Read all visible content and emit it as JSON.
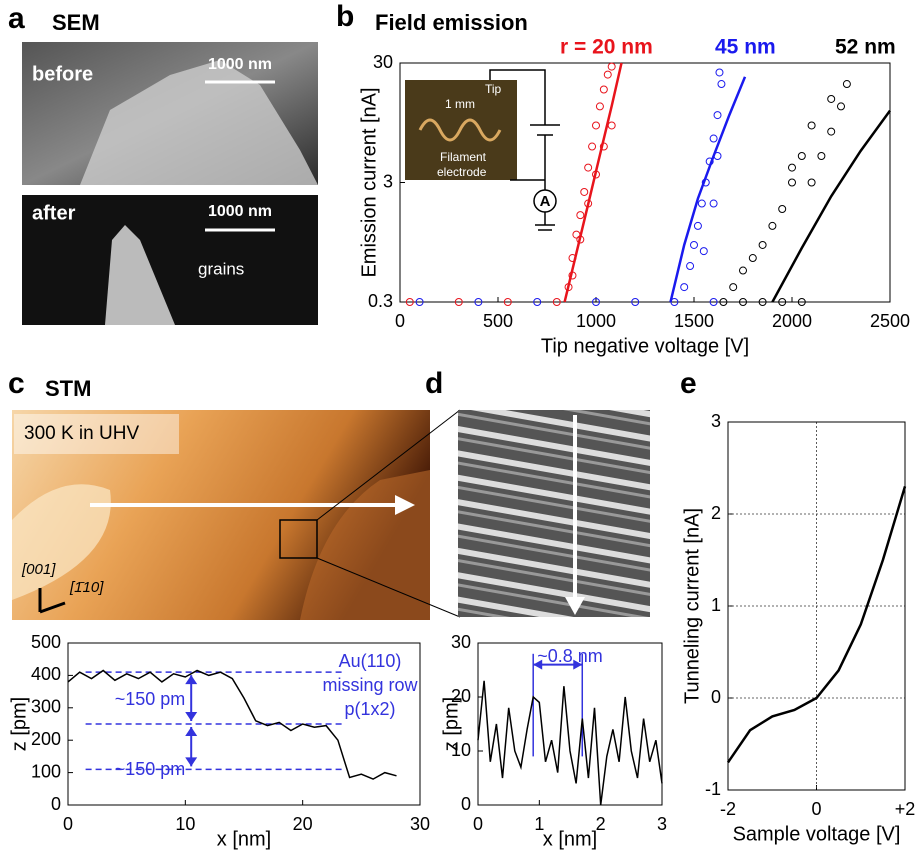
{
  "panels": {
    "a": {
      "label": "a",
      "title": "SEM",
      "before": "before",
      "after": "after",
      "scale_before": "1000 nm",
      "scale_after": "1000 nm",
      "grains": "grains"
    },
    "b": {
      "label": "b",
      "inset_tip": "Tip",
      "inset_scale": "1 mm",
      "inset_filament": "Filament",
      "inset_electrode": "electrode",
      "ammeter": "A"
    },
    "c": {
      "label": "c",
      "title": "STM",
      "condition": "300 K in UHV",
      "dir1": "[001]",
      "dir2": "[1̄10]"
    },
    "d": {
      "label": "d"
    },
    "e": {
      "label": "e"
    }
  },
  "chart_data": [
    {
      "type": "scatter",
      "title": "Field emission",
      "x_label": "Tip negative voltage [V]",
      "y_label": "Emission current [nA]",
      "ylog": true,
      "xlim": [
        0,
        2500
      ],
      "xticks": [
        0,
        500,
        1000,
        1500,
        2000,
        2500
      ],
      "ylim": [
        0.3,
        30
      ],
      "yticks": [
        0.3,
        3,
        30
      ],
      "annotations": [
        "r = 20 nm",
        "45 nm",
        "52 nm"
      ],
      "annotation_colors": [
        "#e8141c",
        "#1a1aee",
        "#000000"
      ],
      "series": [
        {
          "style": "markers",
          "color": "#e8141c",
          "x": [
            860,
            880,
            900,
            920,
            940,
            960,
            980,
            1000,
            1020,
            1040,
            1060,
            1080,
            880,
            920,
            960,
            1000,
            1040,
            1080,
            50,
            300,
            550,
            800
          ],
          "values": [
            0.4,
            0.7,
            1.1,
            1.6,
            2.5,
            4,
            6,
            9,
            13,
            18,
            24,
            28,
            0.5,
            1,
            2,
            3.5,
            6,
            9,
            0.3,
            0.3,
            0.3,
            0.3
          ]
        },
        {
          "style": "line",
          "color": "#e8141c",
          "x": [
            840,
            900,
            960,
            1020,
            1080,
            1130
          ],
          "values": [
            0.3,
            0.77,
            1.98,
            5.1,
            13.1,
            30
          ]
        },
        {
          "style": "markers",
          "color": "#1a1aee",
          "x": [
            1450,
            1480,
            1500,
            1520,
            1540,
            1560,
            1580,
            1600,
            1620,
            1640,
            1550,
            1600,
            1620,
            1630,
            100,
            400,
            700,
            1000,
            1200,
            1400,
            1600
          ],
          "values": [
            0.4,
            0.6,
            0.9,
            1.3,
            2,
            3,
            4.5,
            7,
            11,
            20,
            0.8,
            2,
            5,
            25,
            0.3,
            0.3,
            0.3,
            0.3,
            0.3,
            0.3,
            0.3
          ]
        },
        {
          "style": "line",
          "color": "#1a1aee",
          "x": [
            1380,
            1450,
            1520,
            1600,
            1680,
            1760
          ],
          "values": [
            0.3,
            0.9,
            2.2,
            5,
            11,
            23
          ]
        },
        {
          "style": "markers",
          "color": "#000000",
          "x": [
            1700,
            1750,
            1800,
            1850,
            1900,
            1950,
            2000,
            2050,
            2100,
            2150,
            2200,
            2250,
            2000,
            2100,
            2200,
            2280,
            1650,
            1750,
            1850,
            1950,
            2050
          ],
          "values": [
            0.4,
            0.55,
            0.7,
            0.9,
            1.3,
            1.8,
            3,
            5,
            3,
            5,
            8,
            13,
            4,
            9,
            15,
            20,
            0.3,
            0.3,
            0.3,
            0.3,
            0.3
          ]
        },
        {
          "style": "line",
          "color": "#000000",
          "x": [
            1900,
            2050,
            2200,
            2350,
            2500
          ],
          "values": [
            0.3,
            0.85,
            2.3,
            5.5,
            12
          ]
        }
      ]
    },
    {
      "type": "line",
      "x_label": "x [nm]",
      "y_label": "z [pm]",
      "xlim": [
        0,
        30
      ],
      "xticks": [
        0,
        10,
        20,
        30
      ],
      "ylim": [
        0,
        500
      ],
      "yticks": [
        0,
        100,
        200,
        300,
        400,
        500
      ],
      "hlines": [
        410,
        250,
        110
      ],
      "annotations": [
        "Au(110)",
        "missing row",
        "p(1x2)",
        "~150 pm",
        "~150 pm"
      ],
      "series": [
        {
          "style": "line",
          "color": "#000000",
          "x": [
            0,
            1,
            2,
            3,
            4,
            5,
            6,
            7,
            8,
            9,
            10,
            11,
            12,
            13,
            14,
            15,
            16,
            17,
            18,
            19,
            20,
            21,
            22,
            23,
            24,
            25,
            26,
            27,
            28
          ],
          "values": [
            380,
            410,
            390,
            415,
            385,
            405,
            390,
            410,
            380,
            405,
            395,
            415,
            400,
            410,
            390,
            330,
            260,
            245,
            255,
            230,
            250,
            240,
            245,
            200,
            85,
            95,
            80,
            100,
            90
          ]
        }
      ]
    },
    {
      "type": "line",
      "x_label": "x [nm]",
      "y_label": "z [pm]",
      "xlim": [
        0,
        3
      ],
      "xticks": [
        0,
        1,
        2,
        3
      ],
      "ylim": [
        0,
        30
      ],
      "yticks": [
        0,
        10,
        20,
        30
      ],
      "vlines": [
        0.9,
        1.7
      ],
      "annotations": [
        "~0.8 nm"
      ],
      "series": [
        {
          "style": "line",
          "color": "#000000",
          "x": [
            0,
            0.1,
            0.2,
            0.3,
            0.4,
            0.5,
            0.6,
            0.7,
            0.8,
            0.9,
            1,
            1.1,
            1.2,
            1.3,
            1.4,
            1.5,
            1.6,
            1.7,
            1.8,
            1.9,
            2,
            2.1,
            2.2,
            2.3,
            2.4,
            2.5,
            2.6,
            2.7,
            2.8,
            2.9,
            3
          ],
          "values": [
            12,
            23,
            8,
            15,
            5,
            18,
            10,
            7,
            14,
            20,
            19,
            8,
            12,
            6,
            22,
            10,
            4,
            16,
            5,
            18,
            0,
            9,
            14,
            8,
            20,
            10,
            5,
            16,
            8,
            12,
            4
          ]
        }
      ]
    },
    {
      "type": "line",
      "x_label": "Sample voltage [V]",
      "y_label": "Tunneling current [nA]",
      "grid": true,
      "xlim": [
        -2,
        2
      ],
      "xticks": [
        -2,
        0,
        {
          "value": 2,
          "label": "+2"
        }
      ],
      "ylim": [
        -1,
        3
      ],
      "yticks": [
        -1,
        0,
        1,
        2,
        3
      ],
      "series": [
        {
          "style": "line",
          "color": "#000000",
          "x": [
            -2,
            -1.5,
            -1,
            -0.5,
            0,
            0.5,
            1,
            1.5,
            2
          ],
          "values": [
            -0.7,
            -0.35,
            -0.2,
            -0.13,
            0,
            0.3,
            0.8,
            1.5,
            2.3
          ]
        }
      ]
    }
  ]
}
